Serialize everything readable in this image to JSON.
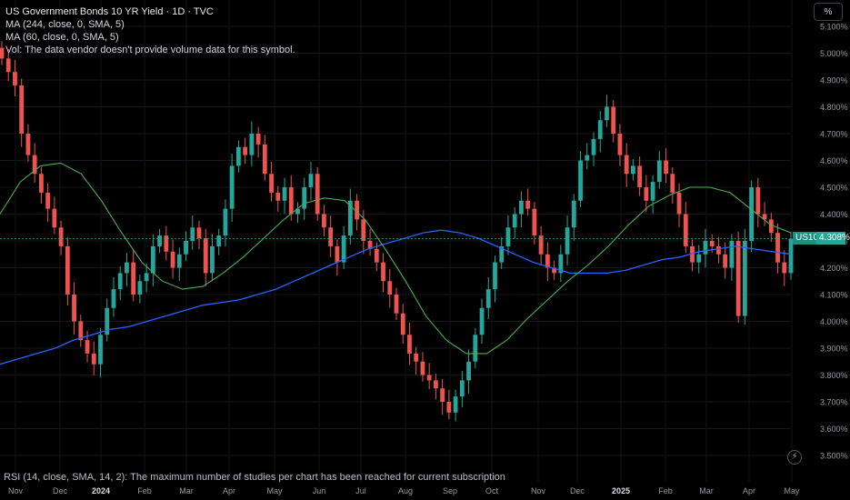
{
  "legend": {
    "title": "US Government Bonds 10 YR Yield · 1D · TVC",
    "ma1": "MA (244, close, 0, SMA, 5)",
    "ma2": "MA (60, close, 0, SMA, 5)",
    "vol": "Vol: The data vendor doesn't provide volume data for this symbol."
  },
  "scale_button": "%",
  "rsi_note": "RSI (14, close, SMA, 14, 2): The maximum number of studies per chart has been reached for current subscription",
  "badge": {
    "symbol": "US10Y",
    "value": "4.308%"
  },
  "bolt_icon": "lightning-icon",
  "colors": {
    "up": "#26a69a",
    "down": "#ef5350",
    "ma244": "#2962ff",
    "ma60": "#4caf50",
    "bg": "#000000"
  },
  "chart_data": {
    "type": "candlestick",
    "title": "US Government Bonds 10 YR Yield · 1D · TVC",
    "ylim": [
      3.45,
      5.15
    ],
    "y_ticks": [
      "5.100%",
      "5.000%",
      "4.900%",
      "4.800%",
      "4.700%",
      "4.600%",
      "4.500%",
      "4.400%",
      "4.300%",
      "4.200%",
      "4.100%",
      "4.000%",
      "3.900%",
      "3.800%",
      "3.700%",
      "3.600%",
      "3.500%"
    ],
    "x_ticks": [
      "Nov",
      "Dec",
      "2024",
      "Feb",
      "Mar",
      "Apr",
      "May",
      "Jun",
      "Jul",
      "Aug",
      "Sep",
      "Oct",
      "Nov",
      "Dec",
      "2025",
      "Feb",
      "Mar",
      "Apr",
      "May"
    ],
    "last_value": 4.308,
    "series": [
      {
        "name": "US10Y",
        "values": [
          4.98,
          4.93,
          4.88,
          4.7,
          4.62,
          4.55,
          4.48,
          4.42,
          4.35,
          4.28,
          4.1,
          4.0,
          3.93,
          3.88,
          3.84,
          3.95,
          4.05,
          4.12,
          4.18,
          4.22,
          4.1,
          4.15,
          4.18,
          4.28,
          4.32,
          4.26,
          4.2,
          4.25,
          4.3,
          4.35,
          4.31,
          4.18,
          4.28,
          4.32,
          4.42,
          4.58,
          4.65,
          4.62,
          4.7,
          4.66,
          4.55,
          4.48,
          4.45,
          4.5,
          4.4,
          4.42,
          4.5,
          4.55,
          4.4,
          4.35,
          4.28,
          4.22,
          4.32,
          4.45,
          4.38,
          4.3,
          4.27,
          4.22,
          4.15,
          4.1,
          4.03,
          3.95,
          3.88,
          3.85,
          3.8,
          3.78,
          3.75,
          3.7,
          3.66,
          3.72,
          3.78,
          3.85,
          3.95,
          4.05,
          4.12,
          4.22,
          4.28,
          4.35,
          4.4,
          4.45,
          4.42,
          4.32,
          4.25,
          4.2,
          4.18,
          4.25,
          4.35,
          4.45,
          4.6,
          4.62,
          4.68,
          4.75,
          4.8,
          4.7,
          4.62,
          4.55,
          4.58,
          4.5,
          4.45,
          4.52,
          4.6,
          4.55,
          4.48,
          4.4,
          4.28,
          4.22,
          4.25,
          4.3,
          4.28,
          4.25,
          4.2,
          4.3,
          4.02,
          4.3,
          4.5,
          4.4,
          4.38,
          4.33,
          4.22,
          4.18,
          4.308
        ]
      },
      {
        "name": "MA (244, close, 0, SMA, 5)",
        "values": [
          3.84,
          3.86,
          3.88,
          3.9,
          3.93,
          3.95,
          3.97,
          3.98,
          4.0,
          4.02,
          4.04,
          4.06,
          4.07,
          4.08,
          4.1,
          4.12,
          4.15,
          4.18,
          4.21,
          4.24,
          4.27,
          4.29,
          4.31,
          4.33,
          4.34,
          4.33,
          4.31,
          4.28,
          4.25,
          4.22,
          4.2,
          4.18,
          4.18,
          4.18,
          4.19,
          4.21,
          4.23,
          4.24,
          4.26,
          4.27,
          4.28,
          4.27,
          4.26,
          4.25
        ]
      },
      {
        "name": "MA (60, close, 0, SMA, 5)",
        "values": [
          4.4,
          4.52,
          4.58,
          4.59,
          4.55,
          4.45,
          4.33,
          4.22,
          4.15,
          4.12,
          4.13,
          4.18,
          4.24,
          4.31,
          4.38,
          4.44,
          4.46,
          4.45,
          4.38,
          4.27,
          4.15,
          4.02,
          3.93,
          3.88,
          3.88,
          3.93,
          4.01,
          4.08,
          4.15,
          4.21,
          4.28,
          4.36,
          4.43,
          4.47,
          4.5,
          4.5,
          4.48,
          4.42,
          4.36,
          4.33
        ]
      }
    ]
  }
}
